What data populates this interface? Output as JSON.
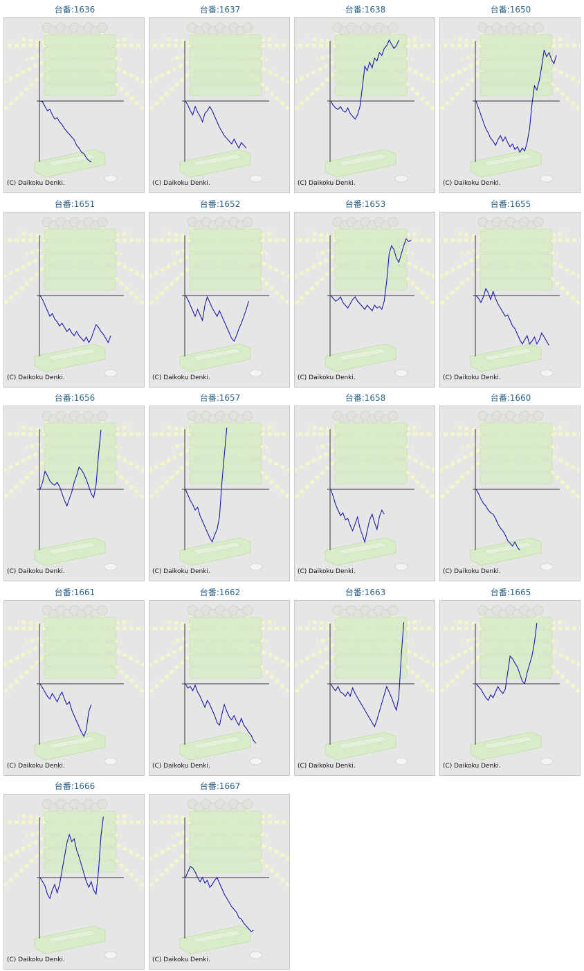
{
  "colors": {
    "line": "#1a1aa8",
    "axis": "#333333",
    "title": "#2b6288",
    "panel": "#e6e6e6",
    "deco": "#d8ecc8",
    "rays": "#f4f5c8",
    "copyright": "#111111"
  },
  "chart_data": [
    {
      "type": "line",
      "title": "台番:1636",
      "copyright": "(C) Daikoku Denki.",
      "series": [
        {
          "values": [
            0,
            -1,
            -8,
            -14,
            -12,
            -20,
            -26,
            -24,
            -30,
            -34,
            -40,
            -44,
            -48,
            -52,
            -56,
            -64,
            -68,
            -74,
            -76,
            -82,
            -86,
            -92
          ]
        }
      ]
    },
    {
      "type": "line",
      "title": "台番:1637",
      "copyright": "(C) Daikoku Denki.",
      "series": [
        {
          "values": [
            0,
            -6,
            -14,
            -20,
            -8,
            -16,
            -22,
            -30,
            -18,
            -14,
            -8,
            -14,
            -22,
            -30,
            -38,
            -44,
            -50,
            -54,
            -58,
            -62,
            -55,
            -62,
            -68,
            -60,
            -64,
            -68
          ]
        }
      ]
    },
    {
      "type": "line",
      "title": "台番:1638",
      "copyright": "(C) Daikoku Denki.",
      "series": [
        {
          "values": [
            0,
            -6,
            -10,
            -12,
            -8,
            -14,
            -16,
            -10,
            -18,
            -22,
            -26,
            -20,
            -8,
            20,
            50,
            44,
            56,
            48,
            62,
            58,
            70,
            66,
            76,
            80,
            88,
            82,
            76,
            80,
            88
          ]
        }
      ]
    },
    {
      "type": "line",
      "title": "台番:1650",
      "copyright": "(C) Daikoku Denki.",
      "series": [
        {
          "values": [
            0,
            -10,
            -20,
            -30,
            -40,
            -46,
            -54,
            -58,
            -64,
            -56,
            -50,
            -58,
            -52,
            -60,
            -66,
            -62,
            -70,
            -66,
            -74,
            -68,
            -72,
            -60,
            -40,
            -5,
            22,
            16,
            30,
            50,
            74,
            64,
            70,
            60,
            54,
            66
          ]
        }
      ]
    },
    {
      "type": "line",
      "title": "台番:1651",
      "copyright": "(C) Daikoku Denki.",
      "series": [
        {
          "values": [
            0,
            -6,
            -14,
            -22,
            -30,
            -26,
            -34,
            -38,
            -44,
            -40,
            -46,
            -52,
            -48,
            -54,
            -58,
            -52,
            -58,
            -62,
            -66,
            -60,
            -68,
            -62,
            -52,
            -42,
            -46,
            -52,
            -56,
            -62,
            -68,
            -58
          ]
        }
      ]
    },
    {
      "type": "line",
      "title": "台番:1652",
      "copyright": "(C) Daikoku Denki.",
      "series": [
        {
          "values": [
            0,
            -6,
            -14,
            -22,
            -30,
            -20,
            -28,
            -36,
            -14,
            -2,
            -10,
            -18,
            -24,
            -30,
            -22,
            -30,
            -38,
            -46,
            -54,
            -62,
            -66,
            -58,
            -48,
            -40,
            -30,
            -20,
            -8
          ]
        }
      ]
    },
    {
      "type": "line",
      "title": "台番:1653",
      "copyright": "(C) Daikoku Denki.",
      "series": [
        {
          "values": [
            0,
            -4,
            -8,
            -6,
            -2,
            -10,
            -14,
            -18,
            -12,
            -6,
            -2,
            -8,
            -12,
            -16,
            -20,
            -14,
            -18,
            -22,
            -14,
            -18,
            -16,
            -20,
            -8,
            20,
            60,
            72,
            66,
            54,
            48,
            60,
            72,
            82,
            78,
            80
          ]
        }
      ]
    },
    {
      "type": "line",
      "title": "台番:1655",
      "copyright": "(C) Daikoku Denki.",
      "series": [
        {
          "values": [
            0,
            -4,
            -10,
            -2,
            10,
            4,
            -6,
            6,
            -4,
            -12,
            -18,
            -24,
            -30,
            -28,
            -36,
            -44,
            -48,
            -56,
            -64,
            -70,
            -64,
            -58,
            -70,
            -66,
            -60,
            -70,
            -64,
            -54,
            -60,
            -66,
            -72
          ]
        }
      ]
    },
    {
      "type": "line",
      "title": "台番:1656",
      "copyright": "(C) Daikoku Denki.",
      "series": [
        {
          "values": [
            0,
            10,
            26,
            20,
            12,
            8,
            6,
            10,
            4,
            -6,
            -16,
            -24,
            -14,
            -4,
            10,
            20,
            32,
            28,
            22,
            14,
            4,
            -6,
            -12,
            6,
            50,
            86
          ]
        }
      ]
    },
    {
      "type": "line",
      "title": "台番:1657",
      "copyright": "(C) Daikoku Denki.",
      "series": [
        {
          "values": [
            0,
            -8,
            -16,
            -22,
            -30,
            -26,
            -38,
            -46,
            -54,
            -62,
            -70,
            -76,
            -66,
            -58,
            -40,
            10,
            50,
            90
          ]
        }
      ]
    },
    {
      "type": "line",
      "title": "台番:1658",
      "copyright": "(C) Daikoku Denki.",
      "series": [
        {
          "values": [
            0,
            -10,
            -22,
            -30,
            -38,
            -34,
            -44,
            -42,
            -52,
            -60,
            -50,
            -40,
            -56,
            -66,
            -76,
            -60,
            -44,
            -36,
            -48,
            -58,
            -40,
            -30,
            -36
          ]
        }
      ]
    },
    {
      "type": "line",
      "title": "台番:1660",
      "copyright": "(C) Daikoku Denki.",
      "series": [
        {
          "values": [
            0,
            -6,
            -14,
            -20,
            -24,
            -30,
            -34,
            -36,
            -42,
            -50,
            -56,
            -60,
            -66,
            -74,
            -78,
            -82,
            -76,
            -84,
            -88
          ]
        }
      ]
    },
    {
      "type": "line",
      "title": "台番:1661",
      "copyright": "(C) Daikoku Denki.",
      "series": [
        {
          "values": [
            0,
            -6,
            -12,
            -18,
            -22,
            -14,
            -20,
            -26,
            -18,
            -12,
            -22,
            -30,
            -26,
            -38,
            -46,
            -54,
            -62,
            -70,
            -76,
            -66,
            -40,
            -30
          ]
        }
      ]
    },
    {
      "type": "line",
      "title": "台番:1662",
      "copyright": "(C) Daikoku Denki.",
      "series": [
        {
          "values": [
            0,
            -6,
            -4,
            -10,
            -2,
            -12,
            -18,
            -26,
            -34,
            -24,
            -30,
            -38,
            -46,
            -56,
            -60,
            -44,
            -30,
            -40,
            -48,
            -52,
            -46,
            -54,
            -60,
            -50,
            -60,
            -64,
            -70,
            -74,
            -82,
            -86
          ]
        }
      ]
    },
    {
      "type": "line",
      "title": "台番:1663",
      "copyright": "(C) Daikoku Denki.",
      "series": [
        {
          "values": [
            0,
            -6,
            -10,
            -4,
            -12,
            -14,
            -18,
            -12,
            -18,
            -6,
            -14,
            -20,
            -26,
            -32,
            -38,
            -44,
            -50,
            -56,
            -62,
            -52,
            -40,
            -28,
            -16,
            -4,
            -12,
            -20,
            -30,
            -38,
            -18,
            40,
            90
          ]
        }
      ]
    },
    {
      "type": "line",
      "title": "台番:1665",
      "copyright": "(C) Daikoku Denki.",
      "series": [
        {
          "values": [
            0,
            -4,
            -8,
            -14,
            -20,
            -24,
            -16,
            -20,
            -12,
            -4,
            -10,
            -14,
            -8,
            16,
            40,
            36,
            30,
            24,
            14,
            4,
            0,
            16,
            28,
            40,
            60,
            88
          ]
        }
      ]
    },
    {
      "type": "line",
      "title": "台番:1666",
      "copyright": "(C) Daikoku Denki.",
      "series": [
        {
          "values": [
            0,
            -6,
            -12,
            -24,
            -30,
            -18,
            -10,
            -22,
            -10,
            10,
            30,
            50,
            62,
            52,
            56,
            40,
            30,
            18,
            6,
            -6,
            -14,
            -6,
            -18,
            -24,
            10,
            60,
            88
          ]
        }
      ]
    },
    {
      "type": "line",
      "title": "台番:1667",
      "copyright": "(C) Daikoku Denki.",
      "series": [
        {
          "values": [
            0,
            8,
            16,
            14,
            8,
            0,
            -6,
            0,
            -8,
            -4,
            -14,
            -10,
            -4,
            0,
            -8,
            -16,
            -24,
            -30,
            -36,
            -42,
            -46,
            -50,
            -58,
            -60,
            -66,
            -70,
            -74,
            -78,
            -76
          ]
        }
      ]
    }
  ]
}
